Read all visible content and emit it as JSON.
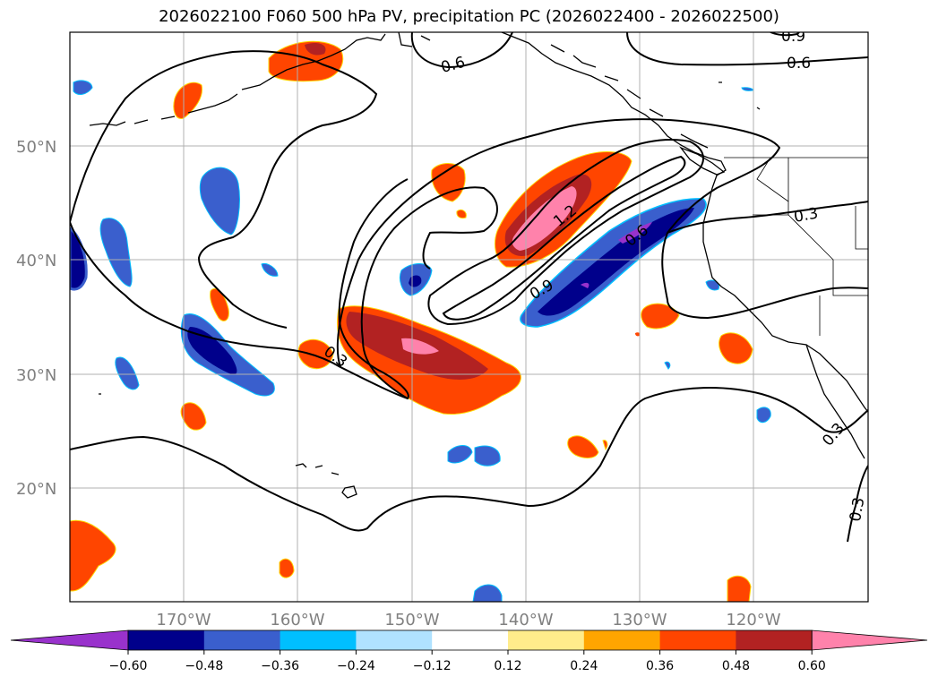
{
  "title": "2026022100 F060 500 hPa PV, precipitation PC (2026022400 - 2026022500)",
  "lat_labels": [
    "50°N",
    "40°N",
    "30°N",
    "20°N"
  ],
  "lon_labels": [
    "170°W",
    "160°W",
    "150°W",
    "140°W",
    "130°W",
    "120°W"
  ],
  "contour_labels": [
    "0.6",
    "0.6",
    "0.9",
    "1.2",
    "0.6",
    "0.9",
    "0.3",
    "0.3",
    "0.3",
    "0.3"
  ],
  "colorbar": {
    "ticks": [
      "−0.60",
      "−0.48",
      "−0.36",
      "−0.24",
      "−0.12",
      "0.12",
      "0.24",
      "0.36",
      "0.48",
      "0.60"
    ],
    "colors": [
      "#9932cc",
      "#00008b",
      "#3a5fcd",
      "#00bfff",
      "#b0e2ff",
      "#ffffff",
      "#ffec8b",
      "#ffa500",
      "#ff4500",
      "#b22222",
      "#ff82ab"
    ]
  }
}
